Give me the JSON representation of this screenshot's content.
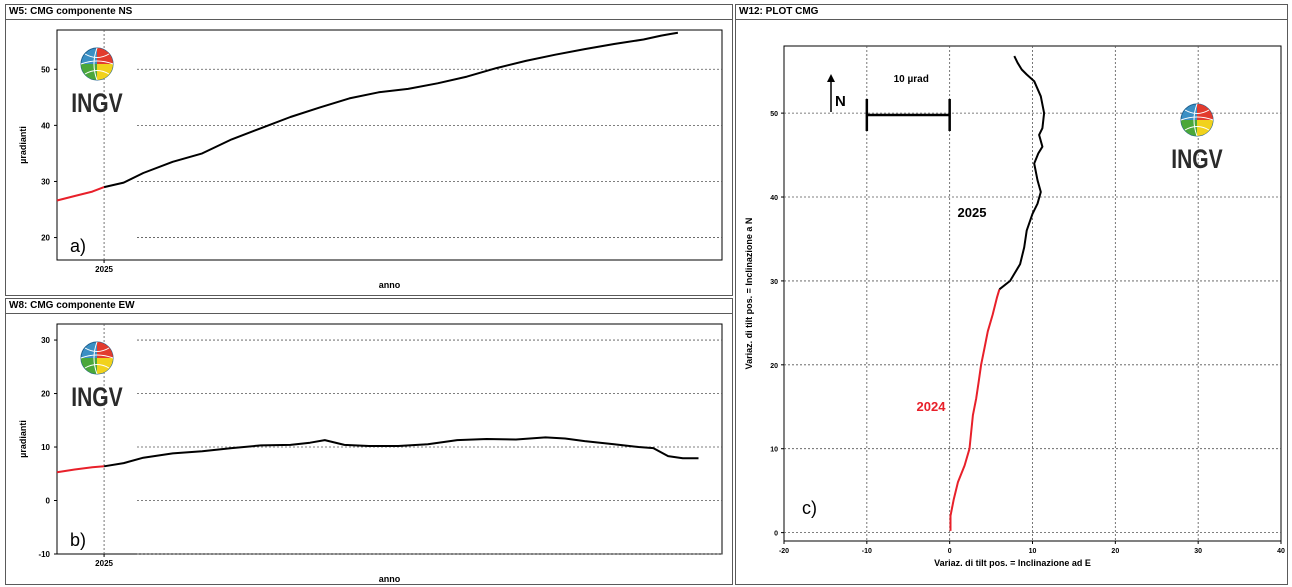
{
  "windows": {
    "ns": {
      "title": "W5: CMG componente NS"
    },
    "ew": {
      "title": "W8: CMG componente EW"
    },
    "plot": {
      "title": "W12: PLOT CMG"
    }
  },
  "logo": {
    "text": "INGV"
  },
  "panels": {
    "a": "a)",
    "b": "b)",
    "c": "c)"
  },
  "scale": {
    "label": "10 µrad",
    "north": "N"
  },
  "labels": {
    "y2025": "2025",
    "y2024": "2024"
  },
  "colors": {
    "before": "#e8202a",
    "after": "#000000",
    "grid": "#555555"
  },
  "chart_data": [
    {
      "type": "line",
      "ylabel": "µradianti",
      "xlabel": "anno",
      "xticks": [
        "2025"
      ],
      "yticks": [
        20,
        30,
        40,
        50
      ],
      "ylim": [
        16,
        57
      ],
      "series": [
        {
          "values": [
            [
              -48,
              26.6
            ],
            [
              -30,
              27.4
            ],
            [
              -12,
              28.2
            ],
            [
              0,
              29.0
            ]
          ]
        },
        {
          "values": [
            [
              0,
              29.0
            ],
            [
              20,
              29.8
            ],
            [
              40,
              31.5
            ],
            [
              70,
              33.5
            ],
            [
              100,
              35.0
            ],
            [
              130,
              37.5
            ],
            [
              160,
              39.5
            ],
            [
              190,
              41.5
            ],
            [
              220,
              43.2
            ],
            [
              250,
              44.8
            ],
            [
              280,
              45.9
            ],
            [
              310,
              46.5
            ],
            [
              340,
              47.5
            ],
            [
              370,
              48.7
            ],
            [
              400,
              50.2
            ],
            [
              430,
              51.5
            ],
            [
              460,
              52.6
            ],
            [
              490,
              53.6
            ],
            [
              520,
              54.5
            ],
            [
              550,
              55.3
            ],
            [
              568,
              56.0
            ],
            [
              578,
              56.3
            ],
            [
              585,
              56.5
            ]
          ]
        }
      ]
    },
    {
      "type": "line",
      "ylabel": "µradianti",
      "xlabel": "anno",
      "xticks": [
        "2025"
      ],
      "yticks": [
        -10,
        0,
        10,
        20,
        30
      ],
      "ylim": [
        -10,
        33
      ],
      "series": [
        {
          "values": [
            [
              -48,
              5.3
            ],
            [
              -30,
              5.8
            ],
            [
              -12,
              6.2
            ],
            [
              0,
              6.4
            ]
          ]
        },
        {
          "values": [
            [
              0,
              6.4
            ],
            [
              20,
              7.0
            ],
            [
              40,
              8.0
            ],
            [
              70,
              8.8
            ],
            [
              100,
              9.2
            ],
            [
              130,
              9.8
            ],
            [
              160,
              10.3
            ],
            [
              190,
              10.4
            ],
            [
              210,
              10.8
            ],
            [
              225,
              11.3
            ],
            [
              245,
              10.4
            ],
            [
              270,
              10.2
            ],
            [
              300,
              10.2
            ],
            [
              330,
              10.5
            ],
            [
              360,
              11.3
            ],
            [
              390,
              11.5
            ],
            [
              420,
              11.4
            ],
            [
              450,
              11.8
            ],
            [
              470,
              11.6
            ],
            [
              490,
              11.1
            ],
            [
              520,
              10.5
            ],
            [
              545,
              10.0
            ],
            [
              560,
              9.8
            ],
            [
              575,
              8.3
            ],
            [
              590,
              7.9
            ],
            [
              606,
              7.9
            ]
          ]
        }
      ]
    },
    {
      "type": "line",
      "xlabel": "Variaz. di tilt pos. = Inclinazione ad E",
      "ylabel": "Variaz. di tilt pos. = Inclinazione a N",
      "xticks": [
        -20,
        -10,
        0,
        10,
        20,
        30,
        40
      ],
      "yticks": [
        0,
        10,
        20,
        30,
        40,
        50
      ],
      "xlim": [
        -20,
        40
      ],
      "ylim": [
        -1,
        58
      ],
      "series": [
        {
          "name": "2024",
          "values": [
            [
              0.1,
              0.2
            ],
            [
              0.1,
              2.0
            ],
            [
              0.5,
              4.0
            ],
            [
              1.0,
              6.0
            ],
            [
              1.8,
              8.0
            ],
            [
              2.4,
              10.0
            ],
            [
              2.6,
              12.0
            ],
            [
              2.8,
              14.0
            ],
            [
              3.2,
              16.0
            ],
            [
              3.5,
              18.0
            ],
            [
              3.8,
              20.0
            ],
            [
              4.2,
              22.0
            ],
            [
              4.6,
              24.0
            ],
            [
              5.2,
              26.0
            ],
            [
              5.7,
              28.0
            ],
            [
              6.0,
              29.0
            ]
          ]
        },
        {
          "name": "2025",
          "values": [
            [
              6.0,
              29.0
            ],
            [
              7.3,
              30.0
            ],
            [
              8.5,
              32.0
            ],
            [
              9.0,
              34.0
            ],
            [
              9.3,
              36.0
            ],
            [
              10.0,
              38.0
            ],
            [
              10.6,
              39.2
            ],
            [
              11.0,
              40.6
            ],
            [
              10.6,
              42.0
            ],
            [
              10.2,
              44.0
            ],
            [
              10.7,
              45.2
            ],
            [
              11.2,
              46.0
            ],
            [
              10.8,
              47.4
            ],
            [
              11.2,
              48.2
            ],
            [
              11.4,
              50.0
            ],
            [
              11.0,
              52.0
            ],
            [
              10.2,
              53.8
            ],
            [
              9.3,
              54.6
            ],
            [
              8.7,
              55.2
            ],
            [
              8.2,
              56.0
            ],
            [
              7.8,
              56.8
            ]
          ]
        }
      ]
    }
  ]
}
